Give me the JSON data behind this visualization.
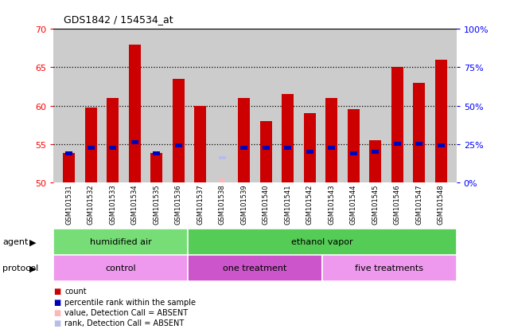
{
  "title": "GDS1842 / 154534_at",
  "samples": [
    "GSM101531",
    "GSM101532",
    "GSM101533",
    "GSM101534",
    "GSM101535",
    "GSM101536",
    "GSM101537",
    "GSM101538",
    "GSM101539",
    "GSM101540",
    "GSM101541",
    "GSM101542",
    "GSM101543",
    "GSM101544",
    "GSM101545",
    "GSM101546",
    "GSM101547",
    "GSM101548"
  ],
  "red_values": [
    53.8,
    59.7,
    61.0,
    68.0,
    53.8,
    63.5,
    60.0,
    null,
    61.0,
    58.0,
    61.5,
    59.0,
    61.0,
    59.5,
    55.5,
    65.0,
    63.0,
    66.0
  ],
  "blue_values": [
    53.8,
    54.5,
    54.5,
    55.2,
    53.8,
    54.8,
    null,
    null,
    54.5,
    54.5,
    54.5,
    54.0,
    54.5,
    53.8,
    54.0,
    55.0,
    55.0,
    54.8
  ],
  "absent_red": [
    null,
    null,
    null,
    null,
    null,
    null,
    null,
    50.5,
    null,
    null,
    null,
    null,
    null,
    null,
    null,
    null,
    null,
    null
  ],
  "absent_blue": [
    null,
    null,
    null,
    null,
    null,
    null,
    null,
    53.2,
    null,
    null,
    null,
    null,
    null,
    null,
    null,
    null,
    null,
    null
  ],
  "ymin": 50,
  "ymax": 70,
  "yticks_left": [
    50,
    55,
    60,
    65,
    70
  ],
  "yticks_right_pct": [
    0,
    25,
    50,
    75,
    100
  ],
  "gridlines": [
    55,
    60,
    65
  ],
  "bar_color": "#cc0000",
  "blue_color": "#0000bb",
  "absent_red_color": "#ffb6b6",
  "absent_blue_color": "#b8bce8",
  "bg_color": "#cccccc",
  "agent_spans": [
    {
      "label": "humidified air",
      "xstart": 0,
      "xend": 6,
      "color": "#77dd77"
    },
    {
      "label": "ethanol vapor",
      "xstart": 6,
      "xend": 18,
      "color": "#55cc55"
    }
  ],
  "proto_spans": [
    {
      "label": "control",
      "xstart": 0,
      "xend": 6,
      "color": "#ee99ee"
    },
    {
      "label": "one treatment",
      "xstart": 6,
      "xend": 12,
      "color": "#cc55cc"
    },
    {
      "label": "five treatments",
      "xstart": 12,
      "xend": 18,
      "color": "#ee99ee"
    }
  ],
  "legend_items": [
    {
      "color": "#cc0000",
      "label": "count"
    },
    {
      "color": "#0000bb",
      "label": "percentile rank within the sample"
    },
    {
      "color": "#ffb6b6",
      "label": "value, Detection Call = ABSENT"
    },
    {
      "color": "#b8bce8",
      "label": "rank, Detection Call = ABSENT"
    }
  ]
}
